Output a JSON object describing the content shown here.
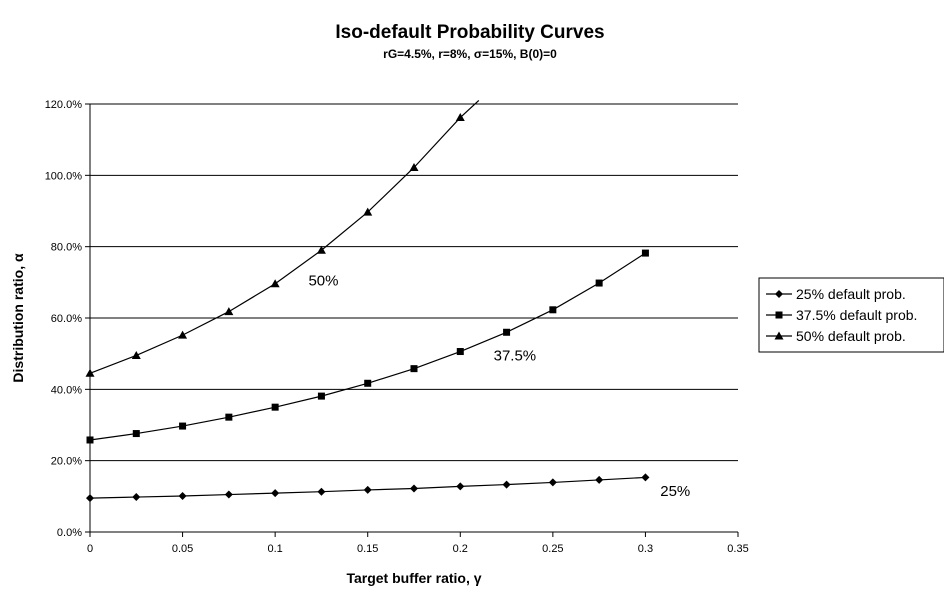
{
  "chart_data": {
    "type": "line",
    "title": "Iso-default Probability Curves",
    "subtitle": "rG=4.5%, r=8%, σ=15%, B(0)=0",
    "xlabel": "Target buffer ratio, γ",
    "ylabel": "Distribution ratio, α",
    "xlim": [
      0,
      0.35
    ],
    "ylim": [
      0,
      120
    ],
    "x_ticks": [
      0,
      0.05,
      0.1,
      0.15,
      0.2,
      0.25,
      0.3,
      0.35
    ],
    "x_tick_labels": [
      "0",
      "0.05",
      "0.1",
      "0.15",
      "0.2",
      "0.25",
      "0.3",
      "0.35"
    ],
    "y_ticks": [
      0,
      20,
      40,
      60,
      80,
      100,
      120
    ],
    "y_tick_labels": [
      "0.0%",
      "20.0%",
      "40.0%",
      "60.0%",
      "80.0%",
      "100.0%",
      "120.0%"
    ],
    "grid": "horizontal",
    "legend_position": "right",
    "series": [
      {
        "name": "25% default prob.",
        "marker": "diamond",
        "x": [
          0,
          0.025,
          0.05,
          0.075,
          0.1,
          0.125,
          0.15,
          0.175,
          0.2,
          0.225,
          0.25,
          0.275,
          0.3
        ],
        "y": [
          9.5,
          9.8,
          10.1,
          10.5,
          10.9,
          11.3,
          11.8,
          12.2,
          12.8,
          13.3,
          13.9,
          14.6,
          15.3
        ]
      },
      {
        "name": "37.5% default prob.",
        "marker": "square",
        "x": [
          0,
          0.025,
          0.05,
          0.075,
          0.1,
          0.125,
          0.15,
          0.175,
          0.2,
          0.225,
          0.25,
          0.275,
          0.3
        ],
        "y": [
          25.8,
          27.6,
          29.7,
          32.2,
          35.0,
          38.1,
          41.7,
          45.8,
          50.6,
          56.0,
          62.3,
          69.8,
          78.2
        ]
      },
      {
        "name": "50% default prob.",
        "marker": "triangle",
        "x": [
          0,
          0.025,
          0.05,
          0.075,
          0.1,
          0.125,
          0.15,
          0.175,
          0.2
        ],
        "y": [
          44.5,
          49.5,
          55.2,
          61.8,
          69.6,
          79.0,
          89.7,
          102.2,
          116.2
        ],
        "extends_to": {
          "x": 0.21,
          "y": 121.0
        }
      }
    ],
    "annotations": [
      {
        "text": "50%",
        "x": 0.118,
        "y": 70.5
      },
      {
        "text": "37.5%",
        "x": 0.218,
        "y": 49.5
      },
      {
        "text": "25%",
        "x": 0.308,
        "y": 11.5
      }
    ]
  }
}
